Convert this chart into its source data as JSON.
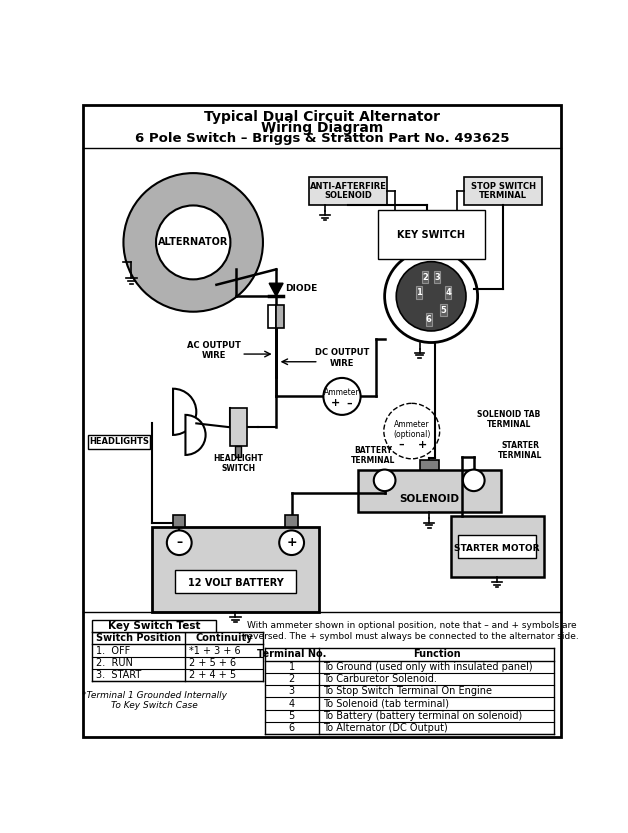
{
  "title_line1": "Typical Dual Circuit Alternator",
  "title_line2": "Wiring Diagram",
  "title_line3": "6 Pole Switch – Briggs & Stratton Part No. 493625",
  "bg_color": "#ffffff",
  "table1_title": "Key Switch Test",
  "table1_headers": [
    "Switch Position",
    "Continuity"
  ],
  "table1_rows": [
    [
      "1.  OFF",
      "*1 + 3 + 6"
    ],
    [
      "2.  RUN",
      "2 + 5 + 6"
    ],
    [
      "3.  START",
      "2 + 4 + 5"
    ]
  ],
  "table1_footnote": "*Terminal 1 Grounded Internally\nTo Key Switch Case",
  "table2_note": "With ammeter shown in optional position, note that – and + symbols are\nreversed. The + symbol must always be connected to the alternator side.",
  "table2_headers": [
    "Terminal No.",
    "Function"
  ],
  "table2_rows": [
    [
      "1",
      "To Ground (used only with insulated panel)"
    ],
    [
      "2",
      "To Carburetor Solenoid."
    ],
    [
      "3",
      "To Stop Switch Terminal On Engine"
    ],
    [
      "4",
      "To Solenoid (tab terminal)"
    ],
    [
      "5",
      "To Battery (battery terminal on solenoid)"
    ],
    [
      "6",
      "To Alternator (DC Output)"
    ]
  ],
  "gray_med": "#b0b0b0",
  "gray_light": "#d0d0d0",
  "gray_dark": "#808080",
  "gray_box": "#e0e0e0"
}
